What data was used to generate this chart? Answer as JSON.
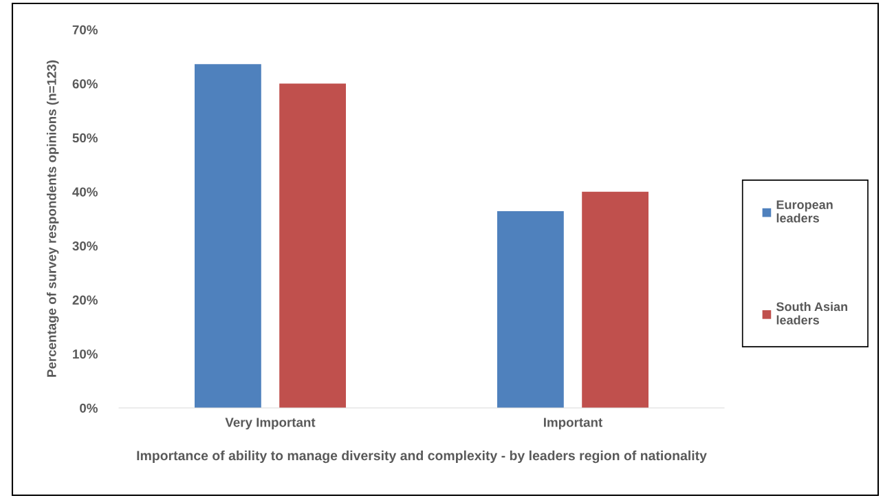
{
  "chart_data": {
    "type": "bar",
    "xlabel": "Importance of ability to manage diversity and complexity - by leaders region of nationality",
    "ylabel": "Percentage of survey respondents opinions (n=123)",
    "categories": [
      "Very Important",
      "Important"
    ],
    "series": [
      {
        "name": "European leaders",
        "color": "#4f81bd",
        "values": [
          63.6,
          36.4
        ]
      },
      {
        "name": "South Asian leaders",
        "color": "#c0504d",
        "values": [
          60,
          40
        ]
      }
    ],
    "ylim": [
      0,
      70
    ],
    "yticks": [
      {
        "value": 0,
        "label": "0%"
      },
      {
        "value": 10,
        "label": "10%"
      },
      {
        "value": 20,
        "label": "20%"
      },
      {
        "value": 30,
        "label": "30%"
      },
      {
        "value": 40,
        "label": "40%"
      },
      {
        "value": 50,
        "label": "50%"
      },
      {
        "value": 60,
        "label": "60%"
      },
      {
        "value": 70,
        "label": "70%"
      }
    ],
    "grid": false,
    "legend": "right"
  }
}
